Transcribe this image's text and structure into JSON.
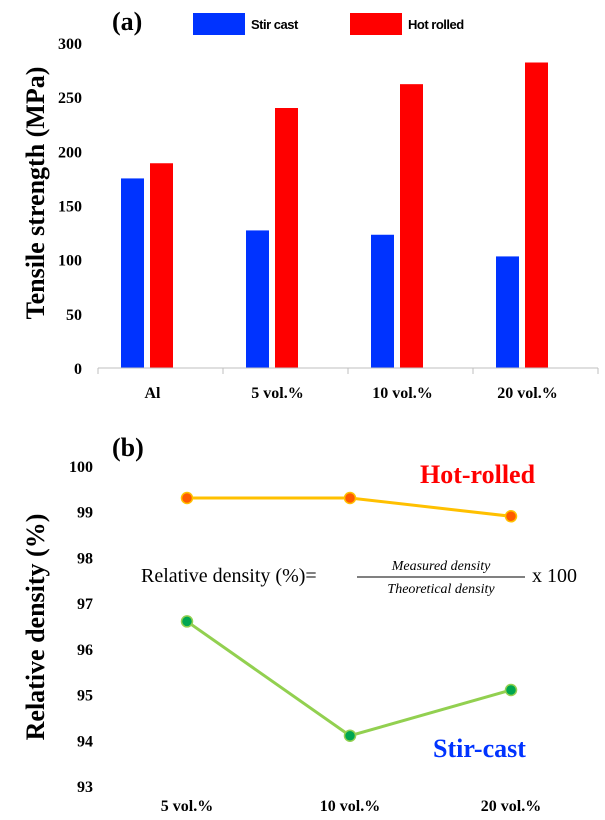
{
  "chart_data": [
    {
      "type": "bar",
      "panel_label": "(a)",
      "categories": [
        "Al",
        "5 vol.%",
        "10 vol.%",
        "20 vol.%"
      ],
      "series": [
        {
          "name": "Stir cast",
          "color": "#0033ff",
          "values": [
            175,
            127,
            123,
            103
          ]
        },
        {
          "name": "Hot rolled",
          "color": "#ff0000",
          "values": [
            189,
            240,
            262,
            282
          ]
        }
      ],
      "ylabel": "Tensile strength (MPa)",
      "xlabel": "",
      "ylim": [
        0,
        300
      ],
      "yticks": [
        0,
        50,
        100,
        150,
        200,
        250,
        300
      ],
      "legend_position": "top",
      "grid": false
    },
    {
      "type": "line",
      "panel_label": "(b)",
      "categories": [
        "5 vol.%",
        "10 vol.%",
        "20 vol.%"
      ],
      "series": [
        {
          "name": "Hot-rolled",
          "line_color": "#ffc000",
          "marker_color": "#ff5a00",
          "values": [
            99.3,
            99.3,
            98.9
          ]
        },
        {
          "name": "Stir-cast",
          "line_color": "#92d050",
          "marker_color": "#00a650",
          "values": [
            96.6,
            94.1,
            95.1
          ]
        }
      ],
      "ylabel": "Relative density (%)",
      "xlabel": "",
      "ylim": [
        93,
        100
      ],
      "yticks": [
        93,
        94,
        95,
        96,
        97,
        98,
        99,
        100
      ],
      "annotations": {
        "hot_rolled": "Hot-rolled",
        "stir_cast": "Stir-cast",
        "equation_lhs": "Relative density (%)=",
        "equation_num": "Measured density",
        "equation_den": "Theoretical density",
        "equation_rhs": "x 100"
      },
      "grid": false
    }
  ]
}
